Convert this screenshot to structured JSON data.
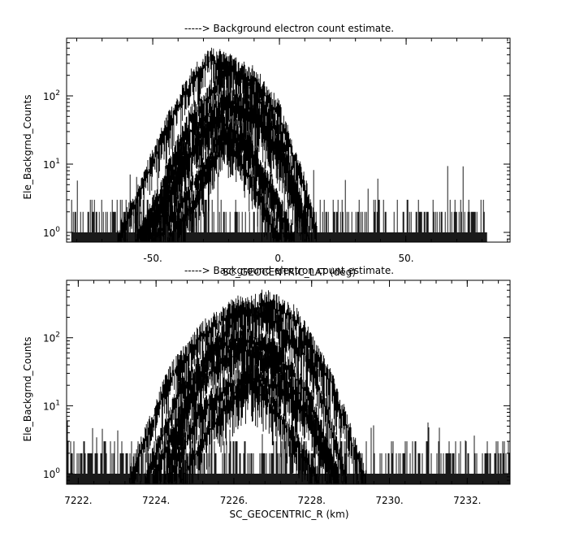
{
  "chart_data": [
    {
      "type": "line",
      "title": "-----> Background electron count estimate.",
      "xlabel": "SC_GEOCENTRIC_LAT (deg)",
      "ylabel": "Ele_Backgrnd_Counts",
      "yscale": "log",
      "xlim": [
        -84,
        91
      ],
      "ylim": [
        0.72,
        700
      ],
      "x_ticks": [
        -50,
        0,
        50
      ],
      "x_tick_labels": [
        "-50.",
        "0.",
        "50."
      ],
      "y_ticks": [
        1,
        10,
        100
      ],
      "grid": false,
      "background_band": {
        "x": [
          -82,
          82
        ],
        "typical_range": [
          1,
          3
        ],
        "max": 10
      },
      "series": [
        {
          "center": -27,
          "half_width": 37,
          "values": [
            [
              -64,
              1
            ],
            [
              -55,
              5
            ],
            [
              -45,
              40
            ],
            [
              -35,
              210
            ],
            [
              -27,
              450
            ],
            [
              -18,
              330
            ],
            [
              -8,
              120
            ],
            [
              2,
              22
            ],
            [
              10,
              2
            ]
          ]
        },
        {
          "center": -20,
          "half_width": 35,
          "values": [
            [
              -55,
              1
            ],
            [
              -45,
              8
            ],
            [
              -35,
              60
            ],
            [
              -20,
              330
            ],
            [
              -10,
              230
            ],
            [
              0,
              70
            ],
            [
              10,
              6
            ],
            [
              15,
              1
            ]
          ]
        },
        {
          "center": -22,
          "half_width": 33,
          "values": [
            [
              -55,
              1
            ],
            [
              -45,
              5
            ],
            [
              -35,
              40
            ],
            [
              -22,
              120
            ],
            [
              -10,
              80
            ],
            [
              0,
              20
            ],
            [
              8,
              3
            ],
            [
              11,
              1
            ]
          ]
        },
        {
          "center": -20,
          "half_width": 32,
          "values": [
            [
              -52,
              1
            ],
            [
              -42,
              5
            ],
            [
              -32,
              30
            ],
            [
              -20,
              100
            ],
            [
              -8,
              60
            ],
            [
              2,
              15
            ],
            [
              10,
              2
            ],
            [
              12,
              1
            ]
          ]
        },
        {
          "center": -25,
          "half_width": 32,
          "values": [
            [
              -57,
              1
            ],
            [
              -47,
              3
            ],
            [
              -37,
              15
            ],
            [
              -25,
              60
            ],
            [
              -13,
              30
            ],
            [
              -3,
              6
            ],
            [
              5,
              1
            ]
          ]
        },
        {
          "center": -22,
          "half_width": 28,
          "values": [
            [
              -50,
              1
            ],
            [
              -40,
              3
            ],
            [
              -30,
              12
            ],
            [
              -22,
              40
            ],
            [
              -12,
              20
            ],
            [
              0,
              3
            ],
            [
              6,
              1
            ]
          ]
        },
        {
          "center": -22,
          "half_width": 22,
          "values": [
            [
              -44,
              1
            ],
            [
              -35,
              3
            ],
            [
              -28,
              10
            ],
            [
              -22,
              30
            ],
            [
              -15,
              15
            ],
            [
              -6,
              3
            ],
            [
              0,
              1
            ]
          ]
        }
      ]
    },
    {
      "type": "line",
      "title": "-----> Background electron count estimate.",
      "xlabel": "SC_GEOCENTRIC_R (km)",
      "ylabel": "Ele_Backgrnd_Counts",
      "yscale": "log",
      "xlim": [
        7221.7,
        7233.1
      ],
      "ylim": [
        0.7,
        700
      ],
      "x_ticks": [
        7222,
        7224,
        7226,
        7228,
        7230,
        7232
      ],
      "x_tick_labels": [
        "7222.",
        "7224.",
        "7226.",
        "7228.",
        "7230.",
        "7232."
      ],
      "y_ticks": [
        1,
        10,
        100
      ],
      "grid": false,
      "background_band": {
        "x": [
          7221.7,
          7233.1
        ],
        "typical_range": [
          1,
          3
        ],
        "max": 6
      },
      "series": [
        {
          "center": 7226.8,
          "half_width": 2.6,
          "values": [
            [
              7224.2,
              1
            ],
            [
              7225.0,
              30
            ],
            [
              7226.0,
              250
            ],
            [
              7226.8,
              450
            ],
            [
              7227.6,
              250
            ],
            [
              7228.5,
              30
            ],
            [
              7229.4,
              1
            ]
          ]
        },
        {
          "center": 7226.1,
          "half_width": 2.8,
          "values": [
            [
              7223.3,
              1
            ],
            [
              7224.3,
              30
            ],
            [
              7225.2,
              150
            ],
            [
              7226.1,
              350
            ],
            [
              7227.0,
              250
            ],
            [
              7228.0,
              60
            ],
            [
              7228.9,
              1
            ]
          ]
        },
        {
          "center": 7226.2,
          "half_width": 2.5,
          "values": [
            [
              7223.7,
              1
            ],
            [
              7224.6,
              20
            ],
            [
              7225.4,
              80
            ],
            [
              7226.2,
              130
            ],
            [
              7227.0,
              90
            ],
            [
              7227.9,
              20
            ],
            [
              7228.7,
              1
            ]
          ]
        },
        {
          "center": 7226.3,
          "half_width": 2.4,
          "values": [
            [
              7223.9,
              1
            ],
            [
              7224.8,
              15
            ],
            [
              7225.5,
              50
            ],
            [
              7226.3,
              90
            ],
            [
              7227.1,
              50
            ],
            [
              7227.9,
              10
            ],
            [
              7228.7,
              1
            ]
          ]
        },
        {
          "center": 7226.5,
          "half_width": 2.2,
          "values": [
            [
              7224.3,
              1
            ],
            [
              7225.1,
              10
            ],
            [
              7225.8,
              25
            ],
            [
              7226.5,
              35
            ],
            [
              7227.2,
              25
            ],
            [
              7228.0,
              8
            ],
            [
              7228.7,
              1
            ]
          ]
        },
        {
          "center": 7226.4,
          "half_width": 1.8,
          "values": [
            [
              7224.6,
              1
            ],
            [
              7225.3,
              5
            ],
            [
              7225.9,
              15
            ],
            [
              7226.4,
              30
            ],
            [
              7226.9,
              15
            ],
            [
              7227.5,
              5
            ],
            [
              7228.2,
              1
            ]
          ]
        }
      ]
    }
  ]
}
